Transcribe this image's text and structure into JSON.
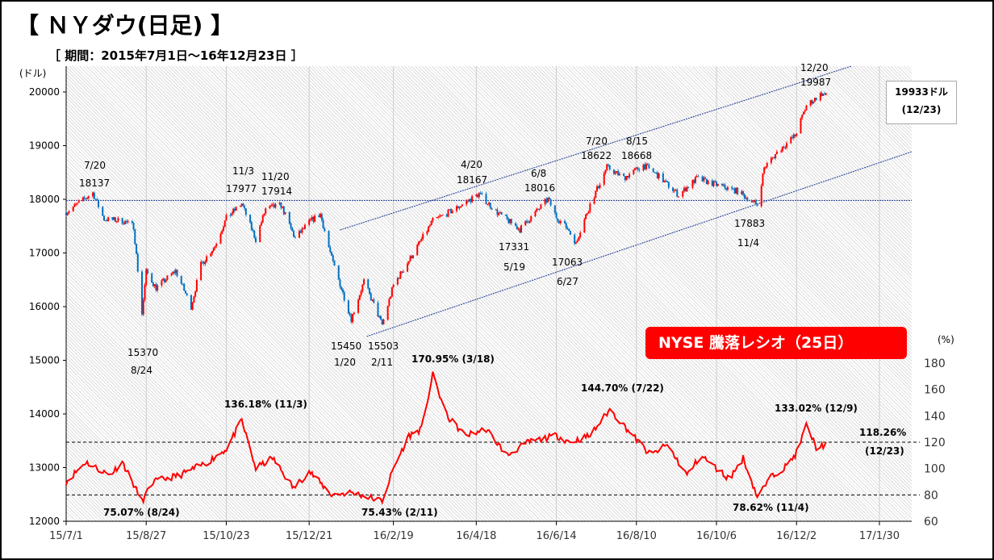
{
  "title": "【 ＮＹダウ(日足) 】",
  "subtitle": "［ 期間：2015年7月1日～16年12月23日 ］",
  "colors": {
    "up": "#ff0000",
    "down": "#0070c0",
    "ratio": "#ff0000",
    "badge": "#ff0000",
    "trend": "#1f3a93"
  },
  "badge": "NYSE 騰落レシオ（25日）",
  "last_box": {
    "value": "19933ドル",
    "date": "(12/23)"
  },
  "chart_data": [
    {
      "type": "candlestick",
      "ylabel": "(ドル)",
      "ylim": [
        12000,
        20000
      ],
      "yticks": [
        12000,
        13000,
        14000,
        15000,
        16000,
        17000,
        18000,
        19000,
        20000
      ],
      "xlim": [
        "2015-07-01",
        "2017-02-22"
      ],
      "xticks": [
        "15/7/1",
        "15/8/27",
        "15/10/23",
        "15/12/21",
        "16/2/19",
        "16/4/18",
        "16/6/14",
        "16/8/10",
        "16/10/6",
        "16/12/2",
        "17/1/30"
      ],
      "xtick_dates": [
        "2015-07-01",
        "2015-08-27",
        "2015-10-23",
        "2015-12-21",
        "2016-02-19",
        "2016-04-18",
        "2016-06-14",
        "2016-08-10",
        "2016-10-06",
        "2016-12-02",
        "2017-01-30"
      ],
      "grid": "vertical",
      "closes": [
        [
          "2015-07-01",
          17760
        ],
        [
          "2015-07-20",
          18120
        ],
        [
          "2015-07-28",
          17630
        ],
        [
          "2015-08-10",
          17600
        ],
        [
          "2015-08-18",
          17500
        ],
        [
          "2015-08-24",
          15870
        ],
        [
          "2015-08-27",
          16650
        ],
        [
          "2015-09-03",
          16350
        ],
        [
          "2015-09-17",
          16670
        ],
        [
          "2015-09-28",
          16000
        ],
        [
          "2015-10-05",
          16780
        ],
        [
          "2015-10-15",
          17140
        ],
        [
          "2015-10-23",
          17650
        ],
        [
          "2015-11-03",
          17920
        ],
        [
          "2015-11-13",
          17250
        ],
        [
          "2015-11-20",
          17820
        ],
        [
          "2015-12-01",
          17890
        ],
        [
          "2015-12-11",
          17270
        ],
        [
          "2015-12-22",
          17600
        ],
        [
          "2015-12-29",
          17720
        ],
        [
          "2016-01-06",
          16900
        ],
        [
          "2016-01-20",
          15770
        ],
        [
          "2016-01-29",
          16470
        ],
        [
          "2016-02-11",
          15660
        ],
        [
          "2016-02-19",
          16400
        ],
        [
          "2016-03-01",
          16860
        ],
        [
          "2016-03-18",
          17600
        ],
        [
          "2016-04-01",
          17790
        ],
        [
          "2016-04-20",
          18100
        ],
        [
          "2016-05-03",
          17750
        ],
        [
          "2016-05-19",
          17440
        ],
        [
          "2016-06-08",
          18005
        ],
        [
          "2016-06-14",
          17670
        ],
        [
          "2016-06-24",
          17400
        ],
        [
          "2016-06-27",
          17140
        ],
        [
          "2016-07-08",
          17900
        ],
        [
          "2016-07-20",
          18600
        ],
        [
          "2016-08-01",
          18400
        ],
        [
          "2016-08-15",
          18640
        ],
        [
          "2016-08-25",
          18450
        ],
        [
          "2016-09-09",
          18080
        ],
        [
          "2016-09-22",
          18390
        ],
        [
          "2016-10-06",
          18270
        ],
        [
          "2016-10-21",
          18150
        ],
        [
          "2016-11-04",
          17890
        ],
        [
          "2016-11-09",
          18590
        ],
        [
          "2016-11-18",
          18870
        ],
        [
          "2016-12-01",
          19190
        ],
        [
          "2016-12-09",
          19750
        ],
        [
          "2016-12-20",
          19970
        ],
        [
          "2016-12-23",
          19930
        ]
      ],
      "lines": [
        {
          "from": [
            "2015-07-01",
            17980
          ],
          "to": [
            "2017-02-22",
            17980
          ],
          "style": "dotted"
        },
        {
          "from": [
            "2016-01-12",
            17429
          ],
          "to": [
            "2017-01-10",
            20481
          ],
          "style": "dotted"
        },
        {
          "from": [
            "2016-01-31",
            15444
          ],
          "to": [
            "2017-02-22",
            18887
          ],
          "style": "dotted"
        }
      ],
      "annotations": [
        {
          "date": "7/20",
          "value": "18137"
        },
        {
          "date": "8/24",
          "value": "15370"
        },
        {
          "date": "11/3",
          "value": "17977"
        },
        {
          "date": "11/20",
          "value": "17914"
        },
        {
          "date": "1/20",
          "value": "15450"
        },
        {
          "date": "2/11",
          "value": "15503"
        },
        {
          "date": "4/20",
          "value": "18167"
        },
        {
          "date": "5/19",
          "value": "17331"
        },
        {
          "date": "6/8",
          "value": "18016"
        },
        {
          "date": "6/27",
          "value": "17063"
        },
        {
          "date": "7/20",
          "value": "18622"
        },
        {
          "date": "8/15",
          "value": "18668"
        },
        {
          "date": "11/4",
          "value": "17883"
        },
        {
          "date": "12/20",
          "value": "19987"
        }
      ]
    },
    {
      "type": "line",
      "ylabel": "(%)",
      "ylim": [
        60,
        180
      ],
      "yticks": [
        60,
        80,
        100,
        120,
        140,
        160,
        180
      ],
      "reference_lines": [
        80,
        120
      ],
      "values": [
        [
          "2015-07-01",
          90
        ],
        [
          "2015-07-15",
          105
        ],
        [
          "2015-08-01",
          95
        ],
        [
          "2015-08-10",
          105
        ],
        [
          "2015-08-24",
          75.07
        ],
        [
          "2015-09-01",
          90
        ],
        [
          "2015-09-20",
          95
        ],
        [
          "2015-10-10",
          105
        ],
        [
          "2015-10-23",
          115
        ],
        [
          "2015-11-03",
          136.18
        ],
        [
          "2015-11-13",
          100
        ],
        [
          "2015-11-25",
          108
        ],
        [
          "2015-12-10",
          85
        ],
        [
          "2015-12-21",
          98
        ],
        [
          "2016-01-06",
          80
        ],
        [
          "2016-01-20",
          82
        ],
        [
          "2016-02-11",
          75.43
        ],
        [
          "2016-02-19",
          100
        ],
        [
          "2016-03-01",
          125
        ],
        [
          "2016-03-10",
          130
        ],
        [
          "2016-03-18",
          170.95
        ],
        [
          "2016-03-28",
          140
        ],
        [
          "2016-04-10",
          125
        ],
        [
          "2016-04-25",
          130
        ],
        [
          "2016-05-10",
          110
        ],
        [
          "2016-05-25",
          120
        ],
        [
          "2016-06-14",
          125
        ],
        [
          "2016-06-24",
          120
        ],
        [
          "2016-07-08",
          125
        ],
        [
          "2016-07-22",
          144.7
        ],
        [
          "2016-08-05",
          128
        ],
        [
          "2016-08-20",
          110
        ],
        [
          "2016-09-01",
          118
        ],
        [
          "2016-09-15",
          95
        ],
        [
          "2016-09-25",
          110
        ],
        [
          "2016-10-06",
          100
        ],
        [
          "2016-10-15",
          92
        ],
        [
          "2016-10-25",
          108
        ],
        [
          "2016-11-04",
          78.62
        ],
        [
          "2016-11-15",
          95
        ],
        [
          "2016-11-25",
          102
        ],
        [
          "2016-12-02",
          112
        ],
        [
          "2016-12-09",
          133.02
        ],
        [
          "2016-12-16",
          116
        ],
        [
          "2016-12-23",
          118.26
        ]
      ],
      "annotations": [
        "136.18% (11/3)",
        "75.07% (8/24)",
        "170.95% (3/18)",
        "75.43% (2/11)",
        "144.70% (7/22)",
        "133.02% (12/9)",
        "78.62% (11/4)",
        "118.26%",
        "(12/23)"
      ]
    }
  ]
}
